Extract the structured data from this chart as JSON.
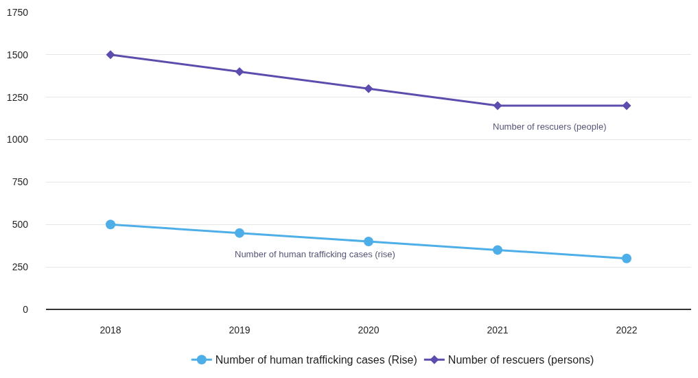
{
  "chart_data": {
    "type": "line",
    "categories": [
      "2018",
      "2019",
      "2020",
      "2021",
      "2022"
    ],
    "series": [
      {
        "name": "Number of human trafficking cases (Rise)",
        "color": "#4eaee8",
        "marker": "circle",
        "values": [
          500,
          450,
          400,
          350,
          300
        ]
      },
      {
        "name": "Number of rescuers (persons)",
        "color": "#5b4cad",
        "marker": "diamond",
        "values": [
          1500,
          1400,
          1300,
          1200,
          1200
        ]
      }
    ],
    "ylim": [
      0,
      1750
    ],
    "yticks": [
      0,
      250,
      500,
      750,
      1000,
      1250,
      1500,
      1750
    ],
    "grid": "y",
    "legend": "bottom",
    "annotations": [
      "Number of human trafficking cases (rise)",
      "Number of rescuers (people)"
    ]
  }
}
